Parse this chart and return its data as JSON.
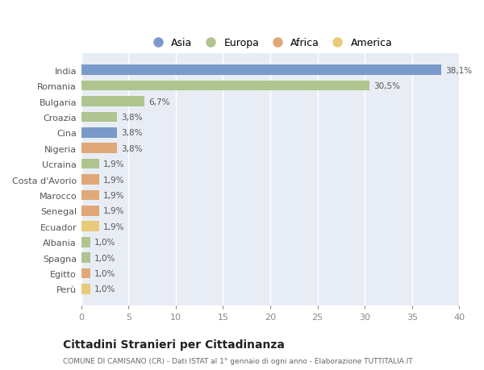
{
  "categories": [
    "India",
    "Romania",
    "Bulgaria",
    "Croazia",
    "Cina",
    "Nigeria",
    "Ucraina",
    "Costa d'Avorio",
    "Marocco",
    "Senegal",
    "Ecuador",
    "Albania",
    "Spagna",
    "Egitto",
    "Perù"
  ],
  "values": [
    38.1,
    30.5,
    6.7,
    3.8,
    3.8,
    3.8,
    1.9,
    1.9,
    1.9,
    1.9,
    1.9,
    1.0,
    1.0,
    1.0,
    1.0
  ],
  "labels": [
    "38,1%",
    "30,5%",
    "6,7%",
    "3,8%",
    "3,8%",
    "3,8%",
    "1,9%",
    "1,9%",
    "1,9%",
    "1,9%",
    "1,9%",
    "1,0%",
    "1,0%",
    "1,0%",
    "1,0%"
  ],
  "colors": [
    "#7a9bc9",
    "#b0c490",
    "#b0c490",
    "#b0c490",
    "#7a9bc9",
    "#e0a878",
    "#b0c490",
    "#e0a878",
    "#e0a878",
    "#e0a878",
    "#e8ca7a",
    "#b0c490",
    "#b0c490",
    "#e0a878",
    "#e8ca7a"
  ],
  "legend": [
    {
      "label": "Asia",
      "color": "#7a9bc9"
    },
    {
      "label": "Europa",
      "color": "#b0c490"
    },
    {
      "label": "Africa",
      "color": "#e0a878"
    },
    {
      "label": "America",
      "color": "#e8ca7a"
    }
  ],
  "xlim": [
    0,
    40
  ],
  "xticks": [
    0,
    5,
    10,
    15,
    20,
    25,
    30,
    35,
    40
  ],
  "title": "Cittadini Stranieri per Cittadinanza",
  "subtitle": "COMUNE DI CAMISANO (CR) - Dati ISTAT al 1° gennaio di ogni anno - Elaborazione TUTTITALIA.IT",
  "fig_bg_color": "#ffffff",
  "plot_bg_color": "#e8edf5"
}
